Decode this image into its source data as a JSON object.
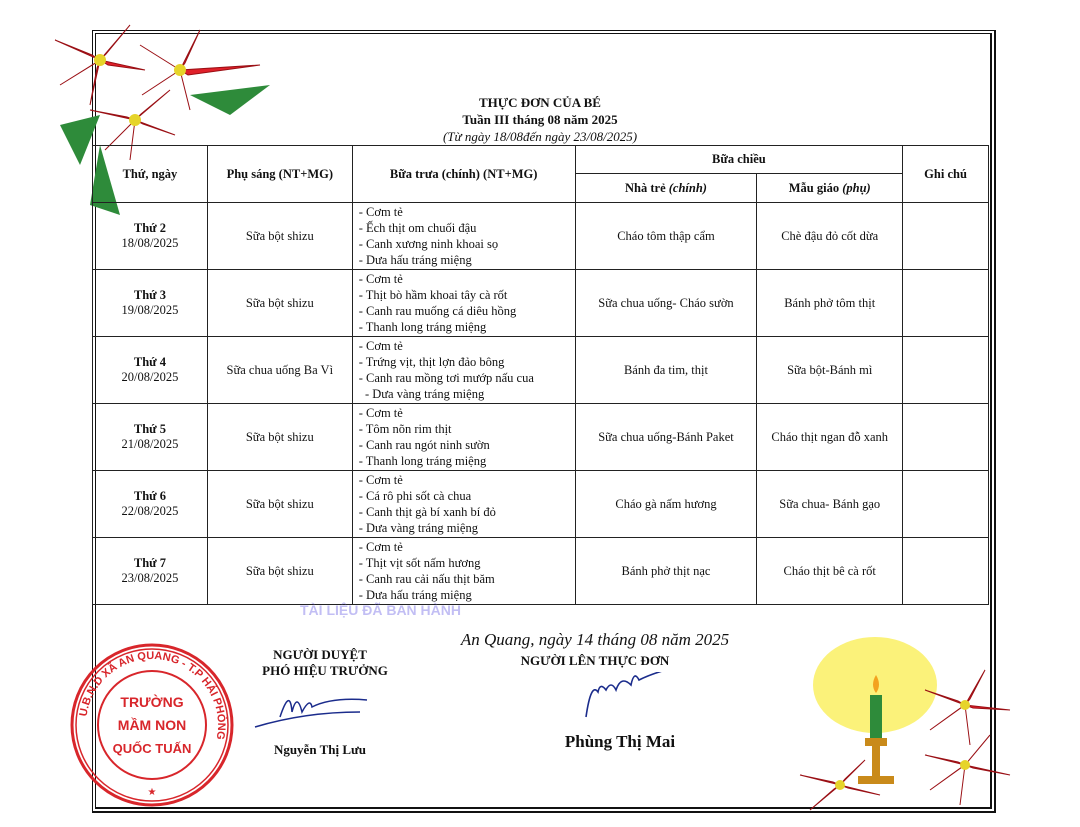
{
  "header": {
    "title": "THỰC ĐƠN CỦA BÉ",
    "week": "Tuần III tháng 08 năm 2025",
    "range": "(Từ ngày 18/08đến ngày 23/08/2025)"
  },
  "table": {
    "headers": {
      "day": "Thứ, ngày",
      "breakfast": "Phụ sáng (NT+MG)",
      "lunch": "Bữa trưa (chính) (NT+MG)",
      "afternoon": "Bữa chiều",
      "nursery": "Nhà trẻ",
      "nursery_note": "(chính)",
      "kinder": "Mẫu giáo",
      "kinder_note": "(phụ)",
      "note": "Ghi chú"
    },
    "rows": [
      {
        "day": "Thứ 2",
        "date": "18/08/2025",
        "breakfast": "Sữa bột shizu",
        "lunch": [
          "- Cơm tẻ",
          "- Ếch thịt om chuối đậu",
          "- Canh xương ninh khoai sọ",
          "- Dưa hấu tráng miệng"
        ],
        "nursery": "Cháo tôm thập cẩm",
        "kinder": "Chè đậu đỏ cốt dừa",
        "note": ""
      },
      {
        "day": "Thứ 3",
        "date": "19/08/2025",
        "breakfast": "Sữa bột shizu",
        "lunch": [
          "- Cơm tẻ",
          "- Thịt bò hầm khoai tây cà rốt",
          "- Canh rau muống cá diêu hồng",
          "- Thanh long tráng miệng"
        ],
        "nursery": "Sữa chua uống- Cháo sườn",
        "kinder": "Bánh phở tôm thịt",
        "note": ""
      },
      {
        "day": "Thứ 4",
        "date": "20/08/2025",
        "breakfast": "Sữa chua uống Ba Vì",
        "lunch": [
          "- Cơm tẻ",
          "- Trứng vịt, thịt lợn đảo bông",
          "- Canh rau mồng tơi mướp nấu cua",
          "  - Dưa vàng tráng miệng"
        ],
        "nursery": "Bánh đa tim, thịt",
        "kinder": "Sữa bột-Bánh mì",
        "note": ""
      },
      {
        "day": "Thứ 5",
        "date": "21/08/2025",
        "breakfast": "Sữa bột shizu",
        "lunch": [
          "- Cơm tẻ",
          "- Tôm nõn rim thịt",
          "- Canh rau ngót ninh sườn",
          "- Thanh long tráng miệng"
        ],
        "nursery": "Sữa chua uống-Bánh Paket",
        "kinder": "Cháo thịt ngan đỗ xanh",
        "note": ""
      },
      {
        "day": "Thứ 6",
        "date": "22/08/2025",
        "breakfast": "Sữa bột shizu",
        "lunch": [
          "- Cơm tẻ",
          "- Cá rô phi sốt cà chua",
          "- Canh thịt gà bí xanh bí đỏ",
          "- Dưa vàng tráng miệng"
        ],
        "nursery": "Cháo gà nấm hương",
        "kinder": "Sữa chua- Bánh gạo",
        "note": ""
      },
      {
        "day": "Thứ 7",
        "date": "23/08/2025",
        "breakfast": "Sữa bột shizu",
        "lunch": [
          "- Cơm tẻ",
          "- Thịt vịt sốt nấm hương",
          "- Canh rau cải nấu thịt băm",
          "- Dưa hấu tráng miệng"
        ],
        "nursery": "Bánh phở thịt nạc",
        "kinder": "Cháo thịt bê cà rốt",
        "note": ""
      }
    ]
  },
  "watermark": "TÀI LIỆU ĐÃ BAN HÀNH",
  "approver": {
    "title": "NGƯỜI DUYỆT",
    "role": "PHÓ HIỆU TRƯỞNG",
    "name": "Nguyễn Thị Lưu"
  },
  "author": {
    "place_date": "An Quang, ngày 14 tháng 08 năm 2025",
    "title": "NGƯỜI LÊN THỰC ĐƠN",
    "name": "Phùng Thị Mai"
  },
  "stamp": {
    "inner": [
      "TRƯỜNG",
      "MẦM NON",
      "QUỐC TUẤN"
    ],
    "ring": "U.B.N.D XÃ AN QUANG - T.P HẢI PHÒNG",
    "color": "#d8262b"
  },
  "colors": {
    "petal": "#e0202a",
    "leaf": "#2e8b3a",
    "signature": "#1b2c8c"
  }
}
